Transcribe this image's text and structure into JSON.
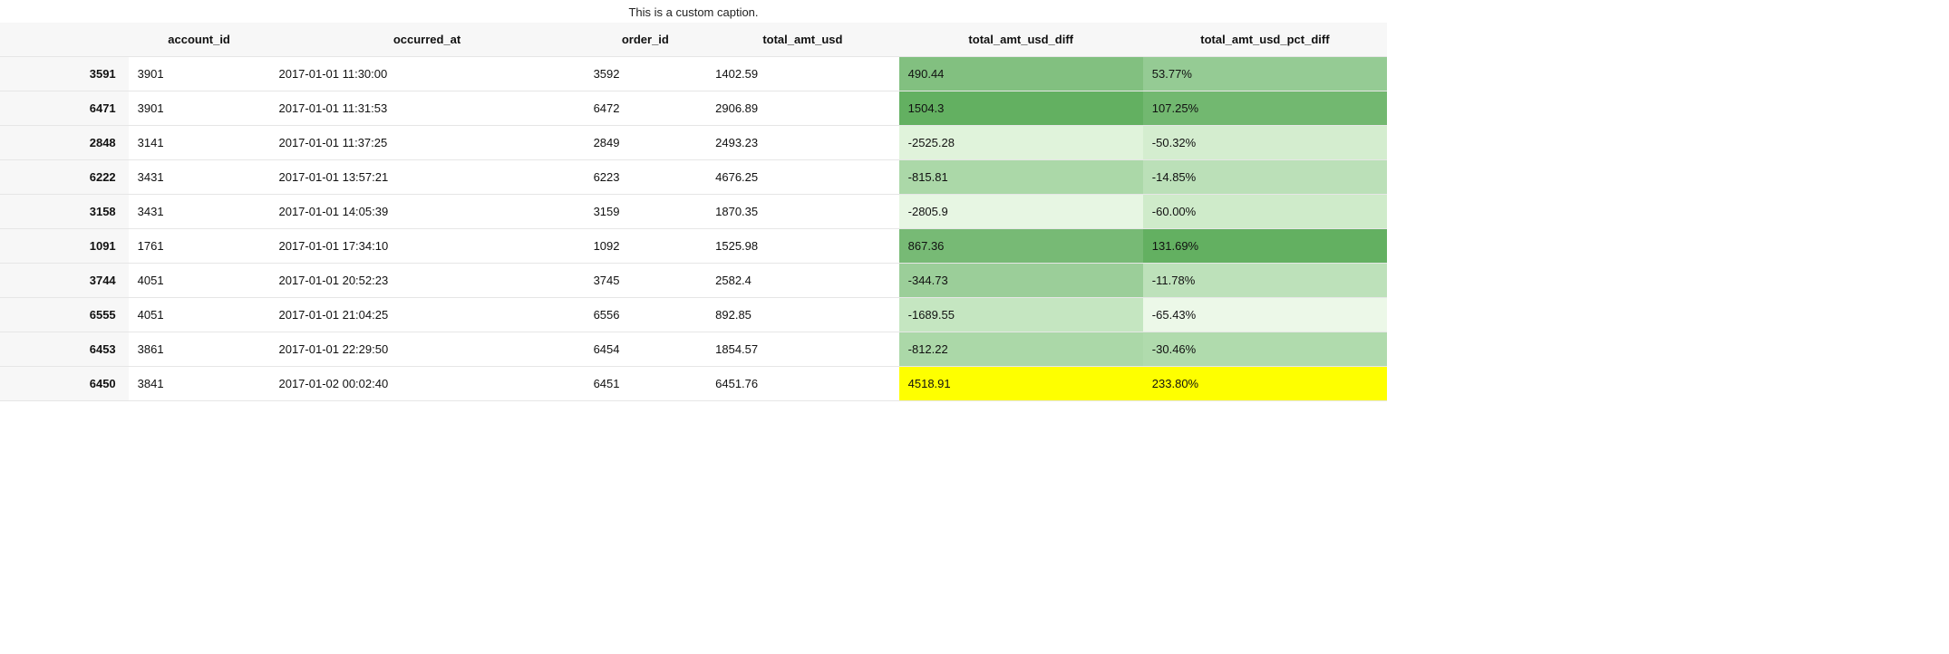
{
  "caption": "This is a custom caption.",
  "columns": [
    "account_id",
    "occurred_at",
    "order_id",
    "total_amt_usd",
    "total_amt_usd_diff",
    "total_amt_usd_pct_diff"
  ],
  "rows": [
    {
      "index": "3591",
      "account_id": "3901",
      "occurred_at": "2017-01-01 11:30:00",
      "order_id": "3592",
      "total_amt_usd": "1402.59",
      "diff": "490.44",
      "pct": "53.77%",
      "diff_color": "#82c080",
      "pct_color": "#95cb94"
    },
    {
      "index": "6471",
      "account_id": "3901",
      "occurred_at": "2017-01-01 11:31:53",
      "order_id": "6472",
      "total_amt_usd": "2906.89",
      "diff": "1504.3",
      "pct": "107.25%",
      "diff_color": "#63b061",
      "pct_color": "#72b870"
    },
    {
      "index": "2848",
      "account_id": "3141",
      "occurred_at": "2017-01-01 11:37:25",
      "order_id": "2849",
      "total_amt_usd": "2493.23",
      "diff": "-2525.28",
      "pct": "-50.32%",
      "diff_color": "#e0f3db",
      "pct_color": "#d4edcf"
    },
    {
      "index": "6222",
      "account_id": "3431",
      "occurred_at": "2017-01-01 13:57:21",
      "order_id": "6223",
      "total_amt_usd": "4676.25",
      "diff": "-815.81",
      "pct": "-14.85%",
      "diff_color": "#abd8a8",
      "pct_color": "#bbe0b8"
    },
    {
      "index": "3158",
      "account_id": "3431",
      "occurred_at": "2017-01-01 14:05:39",
      "order_id": "3159",
      "total_amt_usd": "1870.35",
      "diff": "-2805.9",
      "pct": "-60.00%",
      "diff_color": "#e7f6e3",
      "pct_color": "#cfebca"
    },
    {
      "index": "1091",
      "account_id": "1761",
      "occurred_at": "2017-01-01 17:34:10",
      "order_id": "1092",
      "total_amt_usd": "1525.98",
      "diff": "867.36",
      "pct": "131.69%",
      "diff_color": "#77ba75",
      "pct_color": "#63b061"
    },
    {
      "index": "3744",
      "account_id": "4051",
      "occurred_at": "2017-01-01 20:52:23",
      "order_id": "3745",
      "total_amt_usd": "2582.4",
      "diff": "-344.73",
      "pct": "-11.78%",
      "diff_color": "#9bce99",
      "pct_color": "#bde1ba"
    },
    {
      "index": "6555",
      "account_id": "4051",
      "occurred_at": "2017-01-01 21:04:25",
      "order_id": "6556",
      "total_amt_usd": "892.85",
      "diff": "-1689.55",
      "pct": "-65.43%",
      "diff_color": "#c5e6c1",
      "pct_color": "#ecf8e8"
    },
    {
      "index": "6453",
      "account_id": "3861",
      "occurred_at": "2017-01-01 22:29:50",
      "order_id": "6454",
      "total_amt_usd": "1854.57",
      "diff": "-812.22",
      "pct": "-30.46%",
      "diff_color": "#abd8a8",
      "pct_color": "#b0dbad"
    },
    {
      "index": "6450",
      "account_id": "3841",
      "occurred_at": "2017-01-02 00:02:40",
      "order_id": "6451",
      "total_amt_usd": "6451.76",
      "diff": "4518.91",
      "pct": "233.80%",
      "diff_color": "#feff00",
      "pct_color": "#feff00"
    }
  ]
}
